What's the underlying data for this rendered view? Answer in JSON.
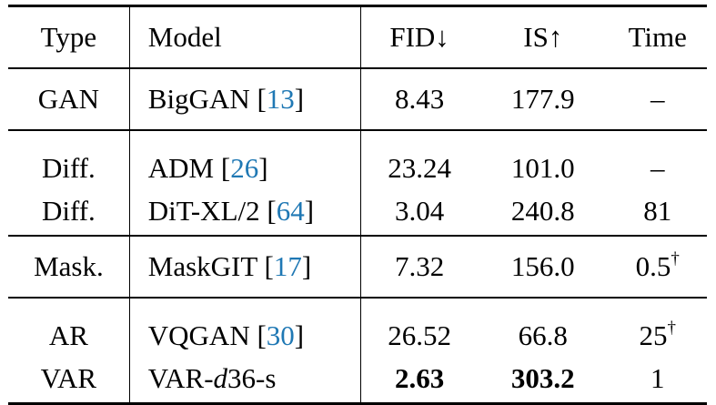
{
  "header": {
    "type": "Type",
    "model": "Model",
    "fid": "FID↓",
    "is": "IS↑",
    "time": "Time"
  },
  "rows": [
    {
      "type": "GAN",
      "model": "BigGAN [",
      "cite": "13",
      "close": "]",
      "fid": "8.43",
      "is": "177.9",
      "time": "–"
    },
    {
      "type": "Diff.",
      "model": "ADM [",
      "cite": "26",
      "close": "]",
      "fid": "23.24",
      "is": "101.0",
      "time": "–"
    },
    {
      "type": "Diff.",
      "model": "DiT-XL/2 [",
      "cite": "64",
      "close": "]",
      "fid": "3.04",
      "is": "240.8",
      "time": "81"
    },
    {
      "type": "Mask.",
      "model": "MaskGIT [",
      "cite": "17",
      "close": "]",
      "fid": "7.32",
      "is": "156.0",
      "time": "0.5",
      "time_sup": "†"
    },
    {
      "type": "AR",
      "model": "VQGAN [",
      "cite": "30",
      "close": "]",
      "fid": "26.52",
      "is": "66.8",
      "time": "25",
      "time_sup": "†"
    },
    {
      "type": "VAR",
      "model_prefix": "VAR-",
      "model_italic": "d",
      "model_suffix": "36-s",
      "fid": "2.63",
      "is": "303.2",
      "time": "1"
    }
  ]
}
